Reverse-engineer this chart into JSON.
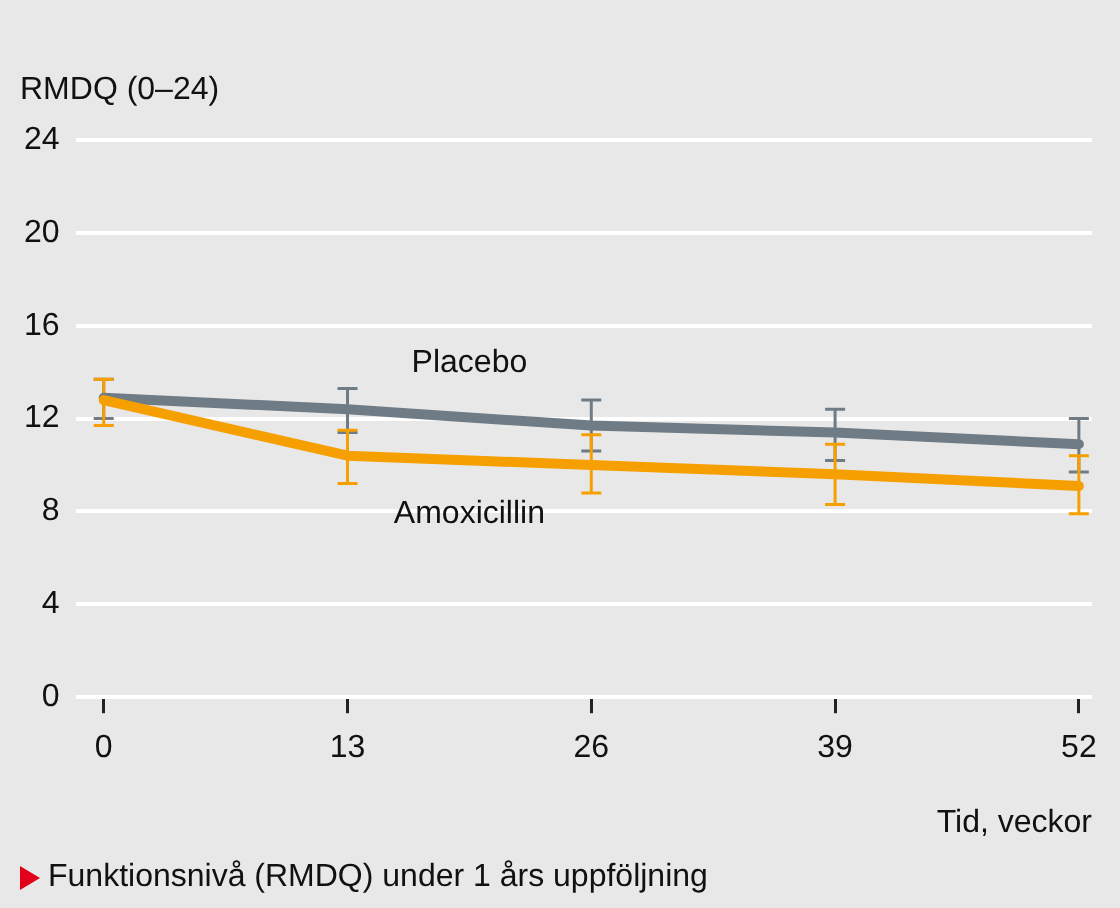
{
  "chart_data": {
    "type": "line",
    "ylabel": "RMDQ (0–24)",
    "xlabel": "Tid, veckor",
    "annotations": [
      "Funktionsnivå (RMDQ) under 1 års uppföljning"
    ],
    "x": [
      0,
      13,
      26,
      39,
      52
    ],
    "xlim": [
      -1.5,
      52.7
    ],
    "xticks": [
      0,
      13,
      26,
      39,
      52
    ],
    "ylim": [
      0,
      24
    ],
    "yticks": [
      0,
      4,
      8,
      12,
      16,
      20,
      24
    ],
    "grid": "y",
    "legend": false,
    "marker": "none",
    "line_style": "solid",
    "series": [
      {
        "name": "Placebo",
        "color": "#6f7c85",
        "values": [
          12.9,
          12.4,
          11.7,
          11.4,
          10.9
        ],
        "errors": [
          [
            12.0,
            13.7
          ],
          [
            11.4,
            13.3
          ],
          [
            10.6,
            12.8
          ],
          [
            10.2,
            12.4
          ],
          [
            9.7,
            12.0
          ]
        ]
      },
      {
        "name": "Amoxicillin",
        "color": "#f5a000",
        "values": [
          12.8,
          10.4,
          10.0,
          9.6,
          9.1
        ],
        "errors": [
          [
            11.7,
            13.7
          ],
          [
            9.2,
            11.5
          ],
          [
            8.8,
            11.3
          ],
          [
            8.3,
            10.9
          ],
          [
            7.9,
            10.4
          ]
        ]
      }
    ]
  }
}
